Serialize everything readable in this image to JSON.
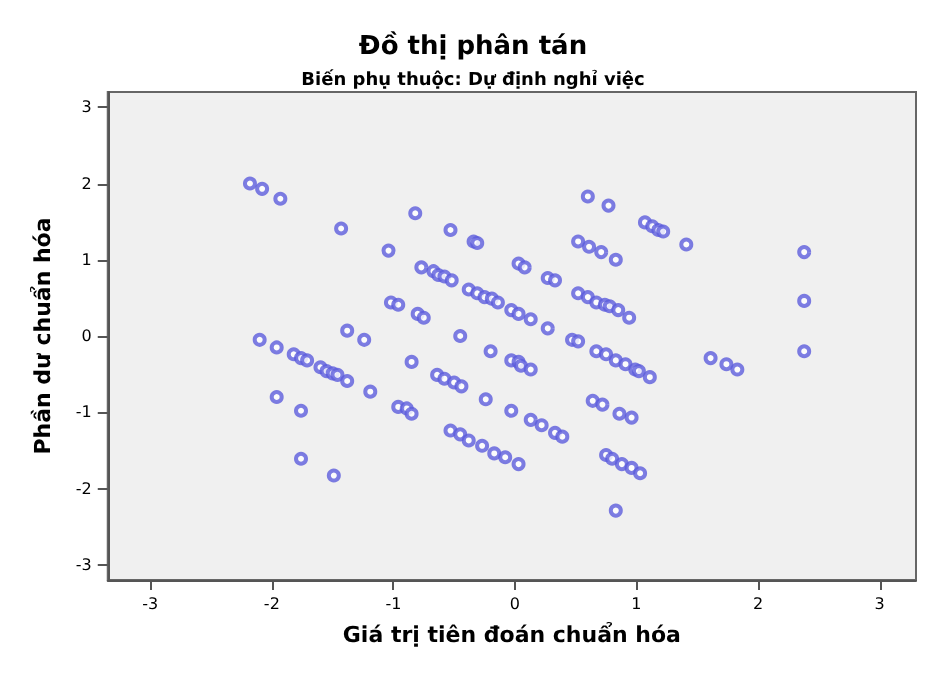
{
  "chart_data": {
    "type": "scatter",
    "title": "Đồ thị phân tán",
    "subtitle": "Biến phụ thuộc: Dự định nghỉ việc",
    "xlabel": "Giá trị tiên đoán chuẩn hóa",
    "ylabel": "Phần dư chuẩn hóa",
    "x": [
      -2.18,
      -2.08,
      -1.93,
      -1.43,
      -0.82,
      -1.04,
      -0.53,
      -0.34,
      -0.31,
      0.03,
      -0.77,
      -0.67,
      -0.63,
      -0.58,
      -0.52,
      -0.38,
      -0.31,
      -0.25,
      -0.19,
      -0.14,
      -0.03,
      0.03,
      -1.02,
      -0.96,
      -0.8,
      -0.75,
      -1.38,
      -1.24,
      -0.45,
      -0.2,
      -0.03,
      0.03,
      -2.1,
      -1.96,
      -1.82,
      -1.76,
      -1.71,
      -1.6,
      -1.55,
      -1.5,
      -1.46,
      -1.38,
      -1.19,
      -0.85,
      -0.64,
      -0.58,
      -0.5,
      -0.44,
      -0.24,
      -0.03,
      -1.96,
      -1.76,
      -0.96,
      -0.89,
      -0.85,
      -0.53,
      -0.45,
      -0.38,
      -0.27,
      -0.17,
      -0.08,
      0.03,
      -1.76,
      -1.49,
      0.6,
      0.77,
      1.07,
      1.13,
      1.18,
      1.22,
      1.41,
      2.38,
      0.52,
      0.61,
      0.71,
      0.83,
      0.08,
      0.27,
      0.33,
      0.52,
      0.6,
      0.67,
      0.74,
      0.78,
      0.85,
      0.94,
      2.38,
      0.13,
      0.27,
      2.38,
      0.47,
      0.52,
      0.67,
      0.75,
      0.83,
      0.91,
      0.99,
      1.02,
      1.11,
      0.05,
      0.13,
      1.61,
      1.74,
      1.83,
      0.13,
      0.22,
      0.33,
      0.39,
      0.64,
      0.72,
      0.86,
      0.96,
      0.75,
      0.8,
      0.88,
      0.96,
      1.03,
      0.83
    ],
    "series": [
      {
        "color": "#5c5cdc",
        "values": [
          2.0,
          1.93,
          1.8,
          1.41,
          1.61,
          1.12,
          1.39,
          1.24,
          1.22,
          0.95,
          0.9,
          0.85,
          0.8,
          0.78,
          0.73,
          0.61,
          0.56,
          0.51,
          0.49,
          0.44,
          0.34,
          0.29,
          0.44,
          0.41,
          0.29,
          0.24,
          0.07,
          -0.05,
          0.0,
          -0.2,
          -0.32,
          -0.34,
          -0.05,
          -0.15,
          -0.24,
          -0.29,
          -0.32,
          -0.41,
          -0.46,
          -0.49,
          -0.51,
          -0.59,
          -0.73,
          -0.34,
          -0.51,
          -0.56,
          -0.61,
          -0.66,
          -0.83,
          -0.98,
          -0.8,
          -0.98,
          -0.93,
          -0.95,
          -1.02,
          -1.24,
          -1.29,
          -1.37,
          -1.44,
          -1.54,
          -1.59,
          -1.68,
          -1.61,
          -1.83,
          1.83,
          1.71,
          1.49,
          1.44,
          1.39,
          1.37,
          1.2,
          1.1,
          1.24,
          1.17,
          1.1,
          1.0,
          0.9,
          0.76,
          0.73,
          0.56,
          0.51,
          0.44,
          0.41,
          0.39,
          0.34,
          0.24,
          0.46,
          0.22,
          0.1,
          -0.2,
          -0.05,
          -0.07,
          -0.2,
          -0.24,
          -0.32,
          -0.37,
          -0.44,
          -0.46,
          -0.54,
          -0.39,
          -0.44,
          -0.29,
          -0.37,
          -0.44,
          -1.1,
          -1.17,
          -1.27,
          -1.32,
          -0.85,
          -0.9,
          -1.02,
          -1.07,
          -1.56,
          -1.61,
          -1.68,
          -1.73,
          -1.8,
          -2.29
        ]
      }
    ],
    "xlim": [
      -3.35,
      3.3
    ],
    "ylim": [
      -3.2,
      3.2
    ],
    "xticks": [
      -3,
      -2,
      -1,
      0,
      1,
      2,
      3
    ],
    "yticks": [
      -3,
      -2,
      -1,
      0,
      1,
      2,
      3
    ],
    "grid": false,
    "marker": "circle"
  }
}
